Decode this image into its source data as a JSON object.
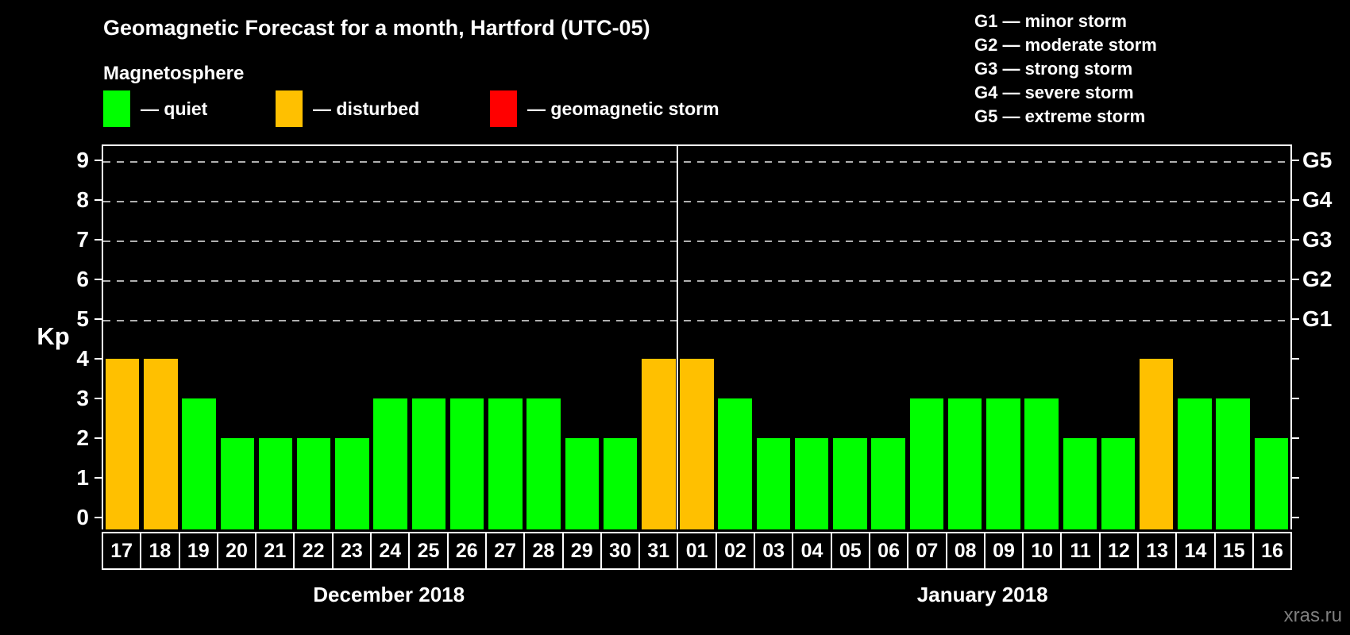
{
  "title": "Geomagnetic Forecast for a month, Hartford (UTC-05)",
  "subtitle": "Magnetosphere",
  "legend": [
    {
      "label": "— quiet",
      "state": "quiet",
      "color": "#00FF00"
    },
    {
      "label": "— disturbed",
      "state": "disturbed",
      "color": "#FFC000"
    },
    {
      "label": "— geomagnetic storm",
      "state": "storm",
      "color": "#FF0000"
    }
  ],
  "g_legend": [
    "G1 — minor storm",
    "G2 — moderate storm",
    "G3 — strong storm",
    "G4 — severe storm",
    "G5 — extreme storm"
  ],
  "watermark": "xras.ru",
  "chart_data": {
    "type": "bar",
    "ylabel": "Kp",
    "ylim": [
      0,
      9
    ],
    "yticks": [
      0,
      1,
      2,
      3,
      4,
      5,
      6,
      7,
      8,
      9
    ],
    "gridlines_at": [
      5,
      6,
      7,
      8,
      9
    ],
    "grid": "dashed",
    "right_axis_labels": [
      {
        "value": 5,
        "label": "G1"
      },
      {
        "value": 6,
        "label": "G2"
      },
      {
        "value": 7,
        "label": "G3"
      },
      {
        "value": 8,
        "label": "G4"
      },
      {
        "value": 9,
        "label": "G5"
      }
    ],
    "colors": {
      "quiet": "#00FF00",
      "disturbed": "#FFC000",
      "storm": "#FF0000"
    },
    "groups": [
      {
        "label": "December 2018",
        "days": [
          {
            "day": "17",
            "kp": 4,
            "state": "disturbed"
          },
          {
            "day": "18",
            "kp": 4,
            "state": "disturbed"
          },
          {
            "day": "19",
            "kp": 3,
            "state": "quiet"
          },
          {
            "day": "20",
            "kp": 2,
            "state": "quiet"
          },
          {
            "day": "21",
            "kp": 2,
            "state": "quiet"
          },
          {
            "day": "22",
            "kp": 2,
            "state": "quiet"
          },
          {
            "day": "23",
            "kp": 2,
            "state": "quiet"
          },
          {
            "day": "24",
            "kp": 3,
            "state": "quiet"
          },
          {
            "day": "25",
            "kp": 3,
            "state": "quiet"
          },
          {
            "day": "26",
            "kp": 3,
            "state": "quiet"
          },
          {
            "day": "27",
            "kp": 3,
            "state": "quiet"
          },
          {
            "day": "28",
            "kp": 3,
            "state": "quiet"
          },
          {
            "day": "29",
            "kp": 2,
            "state": "quiet"
          },
          {
            "day": "30",
            "kp": 2,
            "state": "quiet"
          },
          {
            "day": "31",
            "kp": 4,
            "state": "disturbed"
          }
        ]
      },
      {
        "label": "January 2018",
        "days": [
          {
            "day": "01",
            "kp": 4,
            "state": "disturbed"
          },
          {
            "day": "02",
            "kp": 3,
            "state": "quiet"
          },
          {
            "day": "03",
            "kp": 2,
            "state": "quiet"
          },
          {
            "day": "04",
            "kp": 2,
            "state": "quiet"
          },
          {
            "day": "05",
            "kp": 2,
            "state": "quiet"
          },
          {
            "day": "06",
            "kp": 2,
            "state": "quiet"
          },
          {
            "day": "07",
            "kp": 3,
            "state": "quiet"
          },
          {
            "day": "08",
            "kp": 3,
            "state": "quiet"
          },
          {
            "day": "09",
            "kp": 3,
            "state": "quiet"
          },
          {
            "day": "10",
            "kp": 3,
            "state": "quiet"
          },
          {
            "day": "11",
            "kp": 2,
            "state": "quiet"
          },
          {
            "day": "12",
            "kp": 2,
            "state": "quiet"
          },
          {
            "day": "13",
            "kp": 4,
            "state": "disturbed"
          },
          {
            "day": "14",
            "kp": 3,
            "state": "quiet"
          },
          {
            "day": "15",
            "kp": 3,
            "state": "quiet"
          },
          {
            "day": "16",
            "kp": 2,
            "state": "quiet"
          }
        ]
      }
    ]
  }
}
